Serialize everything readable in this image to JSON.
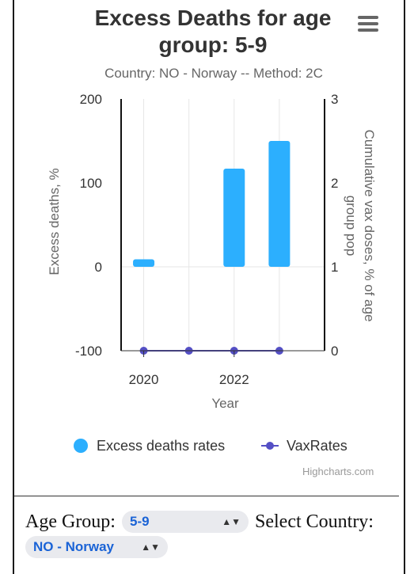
{
  "chart_data": {
    "type": "bar",
    "title": "Excess Deaths for age group: 5-9",
    "subtitle": "Country: NO - Norway -- Method: 2C",
    "xlabel": "Year",
    "ylabel_left": "Excess deaths, %",
    "ylabel_right": "Cumulative vax doses, % of age group pop",
    "x_ticks": [
      "2020",
      "2022"
    ],
    "y_left_ticks": [
      "200",
      "100",
      "0",
      "-100"
    ],
    "y_right_ticks": [
      "3",
      "2",
      "1",
      "0"
    ],
    "y_left_lim": [
      -100,
      200
    ],
    "y_right_lim": [
      0,
      3
    ],
    "x": [
      2020,
      2021,
      2022,
      2023
    ],
    "series": [
      {
        "name": "Excess deaths rates",
        "type": "bar",
        "axis": "left",
        "color": "#2caffe",
        "values": [
          9,
          0,
          117,
          150
        ]
      },
      {
        "name": "VaxRates",
        "type": "line",
        "axis": "right",
        "color": "#544fc5",
        "values": [
          0,
          0,
          0,
          0
        ]
      }
    ],
    "legend": "bottom-center",
    "grid": "vertical"
  },
  "credits": "Highcharts.com",
  "controls": {
    "age_group_label": "Age Group:",
    "age_group_value": "5-9",
    "country_label": "Select Country:",
    "country_value": "NO - Norway"
  }
}
